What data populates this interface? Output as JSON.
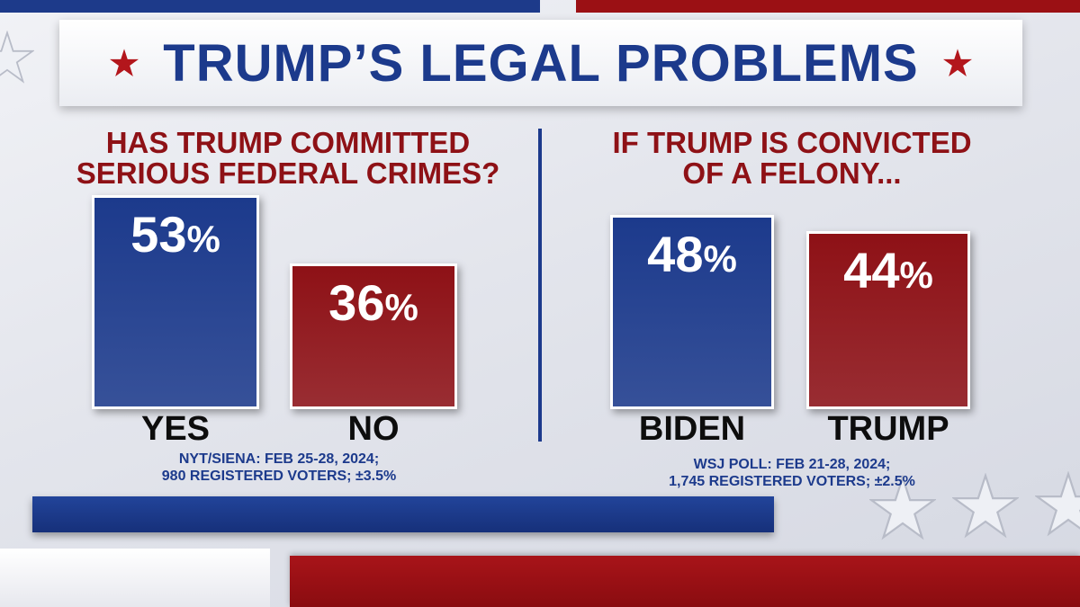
{
  "title": "TRUMP’S LEGAL PROBLEMS",
  "colors": {
    "blue": "#1c3a8c",
    "red": "#8e1116",
    "white": "#ffffff"
  },
  "chart_data": [
    {
      "type": "bar",
      "title": "HAS TRUMP COMMITTED SERIOUS FEDERAL CRIMES?",
      "title_lines": [
        "HAS TRUMP COMMITTED",
        "SERIOUS FEDERAL CRIMES?"
      ],
      "categories": [
        "YES",
        "NO"
      ],
      "values": [
        53,
        36
      ],
      "labels": [
        "53%",
        "36%"
      ],
      "colors": [
        "#1c3a8c",
        "#8e1116"
      ],
      "source_lines": [
        "NYT/SIENA: FEB 25-28, 2024;",
        "980 REGISTERED VOTERS; ±3.5%"
      ]
    },
    {
      "type": "bar",
      "title": "IF TRUMP IS CONVICTED OF A FELONY...",
      "title_lines": [
        "IF TRUMP IS CONVICTED",
        "OF A FELONY..."
      ],
      "categories": [
        "BIDEN",
        "TRUMP"
      ],
      "values": [
        48,
        44
      ],
      "labels": [
        "48%",
        "44%"
      ],
      "colors": [
        "#1c3a8c",
        "#8e1116"
      ],
      "source_lines": [
        "WSJ POLL: FEB 21-28, 2024;",
        "1,745 REGISTERED VOTERS; ±2.5%"
      ]
    }
  ]
}
